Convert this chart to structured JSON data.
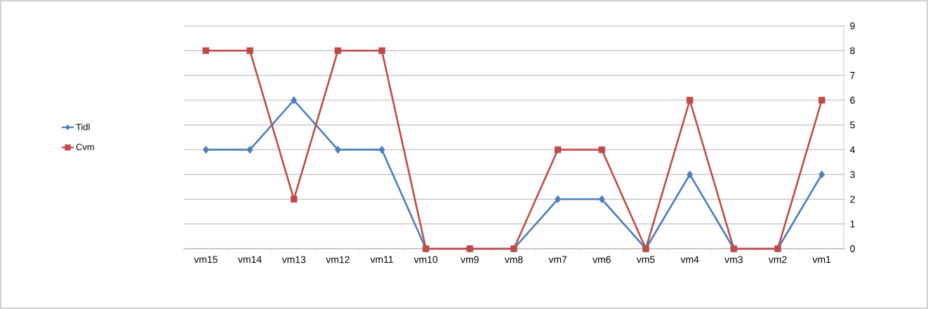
{
  "chart_data": {
    "type": "line",
    "categories": [
      "vm15",
      "vm14",
      "vm13",
      "vm12",
      "vm11",
      "vm10",
      "vm9",
      "vm8",
      "vm7",
      "vm6",
      "vm5",
      "vm4",
      "vm3",
      "vm2",
      "vm1"
    ],
    "series": [
      {
        "name": "Tidl",
        "color": "#4a7ebb",
        "marker": "diamond",
        "values": [
          4,
          4,
          6,
          4,
          4,
          0,
          0,
          0,
          2,
          2,
          0,
          3,
          0,
          0,
          3
        ]
      },
      {
        "name": "Cvm",
        "color": "#be4b48",
        "marker": "square",
        "values": [
          8,
          8,
          2,
          8,
          8,
          0,
          0,
          0,
          4,
          4,
          0,
          6,
          0,
          0,
          6
        ]
      }
    ],
    "ylim": [
      0,
      9
    ],
    "yticks": [
      0,
      1,
      2,
      3,
      4,
      5,
      6,
      7,
      8,
      9
    ],
    "grid": "y",
    "legend": "left",
    "line_style": "solid"
  }
}
